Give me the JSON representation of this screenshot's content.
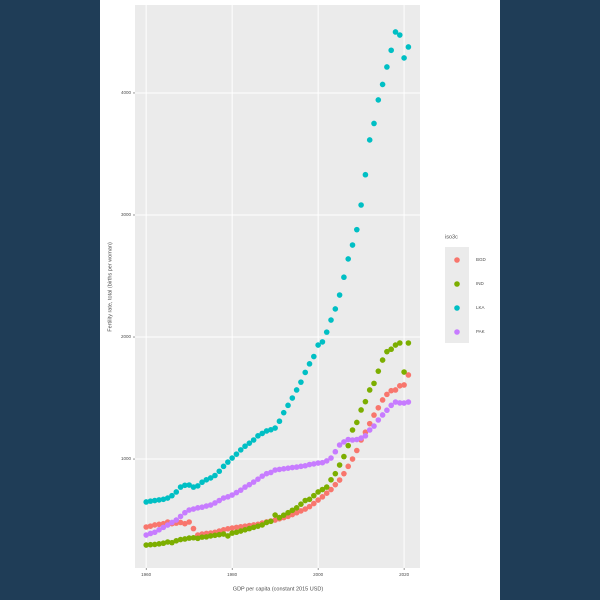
{
  "chart_data": {
    "type": "scatter",
    "x_label": "GDP per capita (constant 2015 USD)",
    "y_label": "Fertility rate, total (births per woman)",
    "legend_title": "iso3c",
    "legend": "right",
    "grid": true,
    "xlim": [
      1957.4,
      2023.7
    ],
    "ylim": [
      107,
      4721
    ],
    "xticks": [
      1960,
      1980,
      2000,
      2020
    ],
    "yticks": [
      1000,
      2000,
      3000,
      4000
    ],
    "x": [
      1960,
      1961,
      1962,
      1963,
      1964,
      1965,
      1966,
      1967,
      1968,
      1969,
      1970,
      1971,
      1972,
      1973,
      1974,
      1975,
      1976,
      1977,
      1978,
      1979,
      1980,
      1981,
      1982,
      1983,
      1984,
      1985,
      1986,
      1987,
      1988,
      1989,
      1990,
      1991,
      1992,
      1993,
      1994,
      1995,
      1996,
      1997,
      1998,
      1999,
      2000,
      2001,
      2002,
      2003,
      2004,
      2005,
      2006,
      2007,
      2008,
      2009,
      2010,
      2011,
      2012,
      2013,
      2014,
      2015,
      2016,
      2017,
      2018,
      2019,
      2020,
      2021
    ],
    "series": [
      {
        "name": "BGD",
        "color": "#F8766D",
        "values": [
          443,
          450,
          460,
          465,
          470,
          484,
          470,
          475,
          480,
          470,
          484,
          430,
          377,
          385,
          390,
          393,
          400,
          410,
          420,
          428,
          434,
          440,
          445,
          450,
          455,
          460,
          465,
          475,
          485,
          492,
          500,
          510,
          520,
          530,
          545,
          560,
          575,
          590,
          610,
          635,
          664,
          690,
          720,
          750,
          790,
          828,
          880,
          940,
          1000,
          1070,
          1156,
          1220,
          1290,
          1360,
          1420,
          1484,
          1530,
          1560,
          1566,
          1600,
          1607,
          1689
        ]
      },
      {
        "name": "IND",
        "color": "#7CAE00",
        "values": [
          295,
          298,
          300,
          305,
          310,
          320,
          315,
          330,
          340,
          345,
          352,
          355,
          350,
          360,
          362,
          370,
          375,
          380,
          385,
          370,
          393,
          400,
          410,
          420,
          430,
          440,
          450,
          460,
          480,
          490,
          541,
          520,
          540,
          560,
          580,
          600,
          630,
          660,
          670,
          700,
          730,
          750,
          770,
          830,
          880,
          951,
          1020,
          1110,
          1238,
          1300,
          1402,
          1470,
          1566,
          1620,
          1720,
          1811,
          1880,
          1900,
          1934,
          1951,
          1713,
          1951
        ]
      },
      {
        "name": "LKA",
        "color": "#00BFC4",
        "values": [
          648,
          655,
          660,
          665,
          670,
          680,
          700,
          730,
          770,
          785,
          787,
          770,
          780,
          810,
          830,
          845,
          865,
          900,
          940,
          975,
          1008,
          1040,
          1075,
          1105,
          1130,
          1156,
          1190,
          1210,
          1230,
          1240,
          1254,
          1310,
          1380,
          1440,
          1500,
          1566,
          1630,
          1710,
          1780,
          1840,
          1934,
          1960,
          2040,
          2139,
          2230,
          2344,
          2490,
          2640,
          2754,
          2880,
          3082,
          3330,
          3615,
          3750,
          3943,
          4070,
          4213,
          4350,
          4500,
          4475,
          4287,
          4377
        ]
      },
      {
        "name": "PAK",
        "color": "#C77CFF",
        "values": [
          377,
          390,
          400,
          420,
          440,
          459,
          480,
          500,
          530,
          560,
          582,
          590,
          600,
          605,
          615,
          623,
          640,
          660,
          680,
          690,
          705,
          725,
          745,
          770,
          790,
          811,
          835,
          860,
          880,
          890,
          910,
          915,
          920,
          925,
          930,
          934,
          940,
          945,
          955,
          960,
          967,
          970,
          985,
          1008,
          1060,
          1115,
          1140,
          1160,
          1156,
          1160,
          1172,
          1190,
          1238,
          1270,
          1320,
          1361,
          1400,
          1440,
          1467,
          1460,
          1459,
          1467
        ]
      }
    ]
  }
}
